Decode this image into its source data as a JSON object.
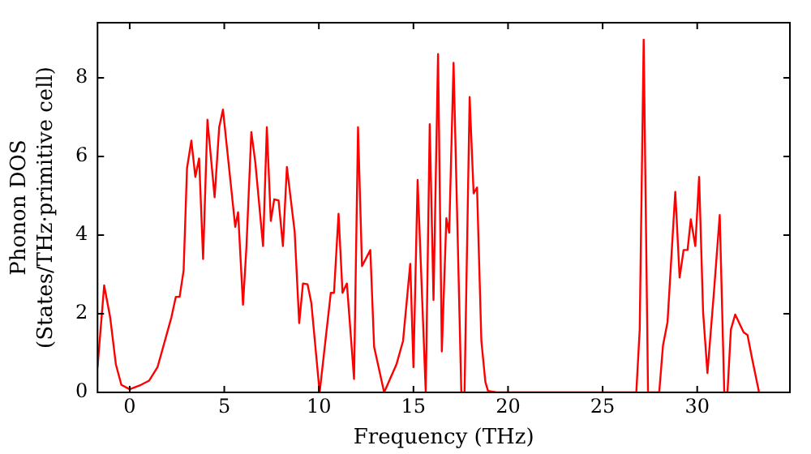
{
  "chart_data": {
    "type": "line",
    "xlabel": "Frequency (THz)",
    "ylabel": "Phonon DOS\n(States/THz·primitive cell)",
    "xlim": [
      -1.7,
      34.9
    ],
    "xticks": [
      0,
      5,
      10,
      15,
      20,
      25,
      30
    ],
    "ylim": [
      0,
      9.4
    ],
    "yticks": [
      0,
      2,
      4,
      6,
      8
    ],
    "grid": false,
    "legend": false,
    "marker": "none",
    "line_style": "solid",
    "series": [
      {
        "color": "#ff0000",
        "x": [
          -1.7,
          -1.35,
          -1.03,
          -0.73,
          -0.44,
          0,
          0.59,
          1.03,
          1.47,
          2.2,
          2.44,
          2.64,
          2.85,
          3.03,
          3.26,
          3.47,
          3.67,
          3.88,
          4.11,
          4.49,
          4.73,
          4.93,
          5.58,
          5.73,
          5.99,
          6.17,
          6.43,
          6.64,
          7.05,
          7.25,
          7.46,
          7.64,
          7.87,
          8.1,
          8.31,
          8.72,
          8.96,
          9.16,
          9.4,
          9.6,
          10.04,
          10.63,
          10.8,
          11.04,
          11.25,
          11.48,
          11.86,
          12.07,
          12.28,
          12.72,
          12.92,
          13.45,
          14.1,
          14.45,
          14.83,
          15.0,
          15.22,
          15.65,
          15.86,
          16.06,
          16.3,
          16.5,
          16.74,
          16.89,
          17.12,
          17.53,
          17.7,
          17.97,
          18.18,
          18.36,
          18.59,
          18.8,
          18.94,
          19.38,
          26.78,
          26.96,
          27.17,
          27.4,
          27.99,
          28.19,
          28.43,
          28.84,
          29.07,
          29.28,
          29.49,
          29.66,
          29.9,
          30.1,
          30.31,
          30.54,
          30.9,
          31.19,
          31.43,
          31.6,
          31.78,
          32.01,
          32.45,
          32.66,
          32.9,
          33.27
        ],
        "values": [
          0.64,
          2.72,
          1.9,
          0.71,
          0.19,
          0.08,
          0.19,
          0.3,
          0.64,
          1.9,
          2.43,
          2.43,
          3.1,
          5.7,
          6.4,
          5.48,
          5.95,
          3.39,
          6.93,
          4.96,
          6.74,
          7.19,
          4.21,
          4.58,
          2.23,
          3.69,
          6.62,
          5.85,
          3.72,
          6.74,
          4.36,
          4.91,
          4.88,
          3.72,
          5.73,
          4.09,
          1.76,
          2.77,
          2.75,
          2.28,
          0,
          2.53,
          2.53,
          4.54,
          2.53,
          2.77,
          0.34,
          6.74,
          3.21,
          3.62,
          1.16,
          0,
          0.71,
          1.31,
          3.27,
          0.64,
          5.4,
          0,
          6.82,
          2.35,
          8.6,
          1.04,
          4.43,
          4.06,
          8.38,
          0,
          0,
          7.51,
          5.06,
          5.21,
          1.31,
          0.27,
          0.04,
          0,
          0,
          1.6,
          8.97,
          0,
          0,
          1.19,
          1.79,
          5.1,
          2.92,
          3.62,
          3.62,
          4.4,
          3.72,
          5.48,
          2.05,
          0.49,
          2.65,
          4.51,
          0,
          0,
          1.6,
          1.98,
          1.53,
          1.46,
          0.86,
          0
        ]
      }
    ]
  }
}
